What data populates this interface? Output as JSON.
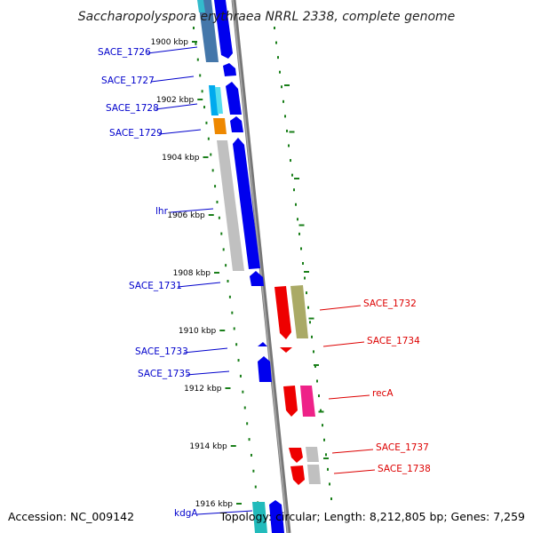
{
  "title": "Saccharopolyspora erythraea NRRL 2338, complete genome",
  "footer": {
    "accession": "Accession: NC_009142",
    "info": "Topology: circular; Length: 8,212,805 bp; Genes: 7,259"
  },
  "colors": {
    "blue_strand": "#0000ee",
    "red_strand": "#ee0000",
    "label_blue": "#0000cc",
    "label_red": "#dd0000",
    "tick_green": "#1a7f1a",
    "backbone": "#777777"
  },
  "scale_marks": [
    {
      "label": "1900 kbp",
      "kbp": 1900
    },
    {
      "label": "1902 kbp",
      "kbp": 1902
    },
    {
      "label": "1904 kbp",
      "kbp": 1904
    },
    {
      "label": "1906 kbp",
      "kbp": 1906
    },
    {
      "label": "1908 kbp",
      "kbp": 1908
    },
    {
      "label": "1910 kbp",
      "kbp": 1910
    },
    {
      "label": "1912 kbp",
      "kbp": 1912
    },
    {
      "label": "1914 kbp",
      "kbp": 1914
    },
    {
      "label": "1916 kbp",
      "kbp": 1916
    }
  ],
  "gene_labels": [
    {
      "text": "SACE_1726",
      "strand": "left"
    },
    {
      "text": "SACE_1727",
      "strand": "left"
    },
    {
      "text": "SACE_1728",
      "strand": "left"
    },
    {
      "text": "SACE_1729",
      "strand": "left"
    },
    {
      "text": "lhr",
      "strand": "left"
    },
    {
      "text": "SACE_1731",
      "strand": "left"
    },
    {
      "text": "SACE_1733",
      "strand": "left"
    },
    {
      "text": "SACE_1735",
      "strand": "left"
    },
    {
      "text": "kdgA",
      "strand": "left"
    },
    {
      "text": "SACE_1732",
      "strand": "right"
    },
    {
      "text": "SACE_1734",
      "strand": "right"
    },
    {
      "text": "recA",
      "strand": "right"
    },
    {
      "text": "SACE_1737",
      "strand": "right"
    },
    {
      "text": "SACE_1738",
      "strand": "right"
    }
  ]
}
